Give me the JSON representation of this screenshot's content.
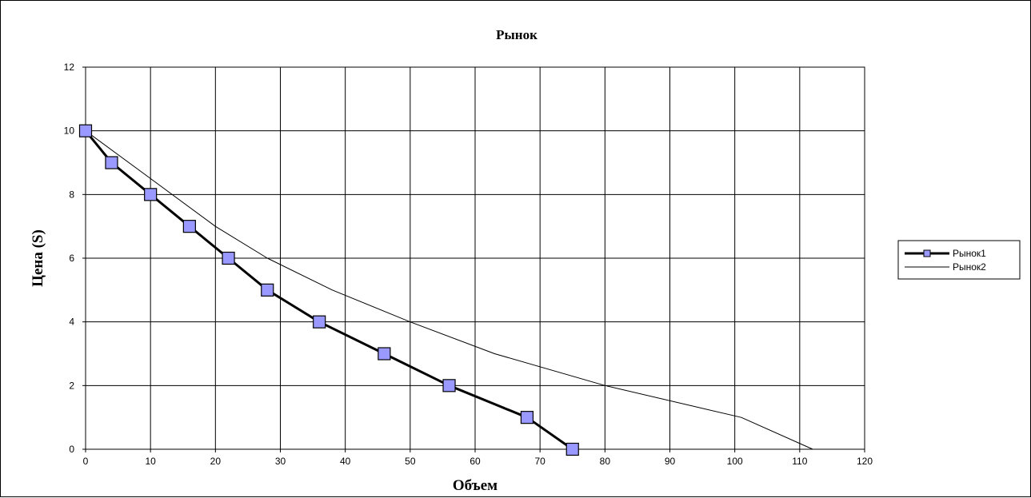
{
  "chart_data": {
    "type": "line",
    "title": "Рынок",
    "xlabel": "Объем",
    "ylabel": "Цена (S)",
    "xlim": [
      0,
      120
    ],
    "ylim": [
      0,
      12
    ],
    "x_ticks": [
      "0",
      "10",
      "20",
      "30",
      "40",
      "50",
      "60",
      "70",
      "80",
      "90",
      "100",
      "110",
      "120"
    ],
    "y_ticks": [
      "0",
      "2",
      "4",
      "6",
      "8",
      "10",
      "12"
    ],
    "grid": true,
    "legend_position": "right",
    "series": [
      {
        "name": "Рынок1",
        "color": "#000000",
        "marker": "square",
        "marker_fill": "#9999ff",
        "line_style": "thick",
        "x": [
          0,
          4,
          10,
          16,
          22,
          28,
          36,
          46,
          56,
          68,
          75
        ],
        "y": [
          10,
          9,
          8,
          7,
          6,
          5,
          4,
          3,
          2,
          1,
          0
        ]
      },
      {
        "name": "Рынок2",
        "color": "#000000",
        "marker": "none",
        "line_style": "thin",
        "x": [
          0,
          10,
          20,
          28,
          38,
          50,
          63,
          80,
          101,
          112
        ],
        "y": [
          10,
          8.5,
          7,
          6,
          5,
          4,
          3,
          2,
          1,
          0
        ]
      }
    ]
  }
}
